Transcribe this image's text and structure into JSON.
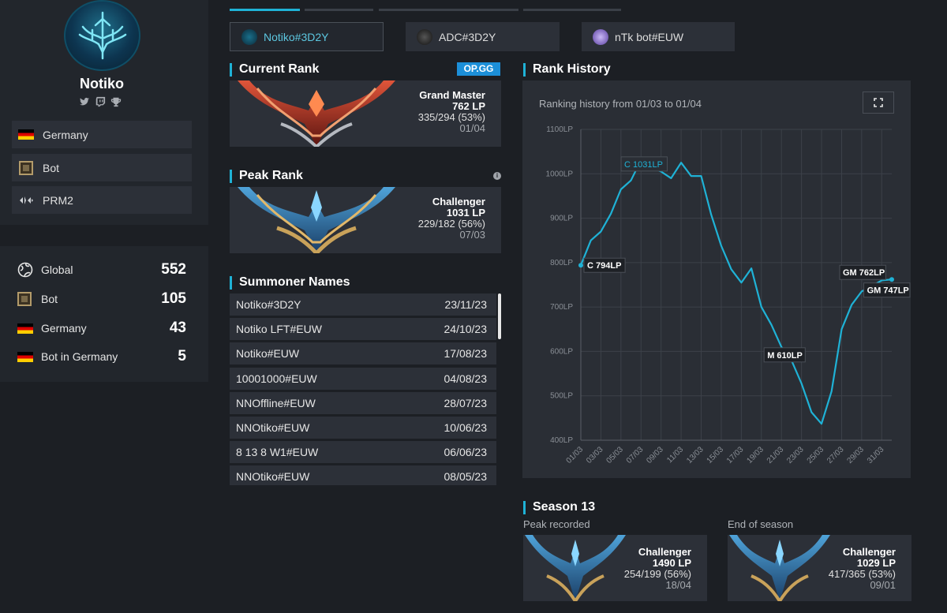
{
  "profile": {
    "name": "Notiko",
    "info": [
      {
        "icon": "germany-flag-icon",
        "label": "Germany"
      },
      {
        "icon": "bot-role-icon",
        "label": "Bot"
      },
      {
        "icon": "team-logo-icon",
        "label": "PRM2"
      }
    ]
  },
  "ladder": [
    {
      "icon": "globe-icon",
      "label": "Global",
      "value": "552"
    },
    {
      "icon": "bot-role-icon",
      "label": "Bot",
      "value": "105"
    },
    {
      "icon": "germany-flag-icon",
      "label": "Germany",
      "value": "43"
    },
    {
      "icon": "germany-flag-icon",
      "label": "Bot in Germany",
      "value": "5"
    }
  ],
  "accounts": [
    {
      "label": "Notiko#3D2Y",
      "active": true
    },
    {
      "label": "ADC#3D2Y",
      "active": false
    },
    {
      "label": "nTk bot#EUW",
      "active": false
    }
  ],
  "current_rank": {
    "title": "Current Rank",
    "badge": "OP.GG",
    "tier": "Grand Master",
    "lp": "762 LP",
    "wl": "335/294 (53%)",
    "date": "01/04"
  },
  "peak_rank": {
    "title": "Peak Rank",
    "tier": "Challenger",
    "lp": "1031 LP",
    "wl": "229/182 (56%)",
    "date": "07/03"
  },
  "summoner_names": {
    "title": "Summoner Names",
    "rows": [
      {
        "name": "Notiko#3D2Y",
        "date": "23/11/23"
      },
      {
        "name": "Notiko LFT#EUW",
        "date": "24/10/23"
      },
      {
        "name": "Notiko#EUW",
        "date": "17/08/23"
      },
      {
        "name": "10001000#EUW",
        "date": "04/08/23"
      },
      {
        "name": "NNOffline#EUW",
        "date": "28/07/23"
      },
      {
        "name": "NNOtiko#EUW",
        "date": "10/06/23"
      },
      {
        "name": "8 13 8 W1#EUW",
        "date": "06/06/23"
      },
      {
        "name": "NNOtiko#EUW",
        "date": "08/05/23"
      }
    ]
  },
  "rank_history": {
    "title": "Rank History",
    "subtitle": "Ranking history from 01/03 to 01/04"
  },
  "chart_data": {
    "type": "line",
    "title": "",
    "xlabel": "",
    "ylabel": "",
    "ylim": [
      400,
      1100
    ],
    "yticks": [
      "400LP",
      "500LP",
      "600LP",
      "700LP",
      "800LP",
      "900LP",
      "1000LP",
      "1100LP"
    ],
    "xticks": [
      "01/03",
      "03/03",
      "05/03",
      "07/03",
      "09/03",
      "11/03",
      "13/03",
      "15/03",
      "17/03",
      "19/03",
      "21/03",
      "23/03",
      "25/03",
      "27/03",
      "29/03",
      "31/03"
    ],
    "grid": true,
    "color": "#1fb2d6",
    "series": [
      {
        "x": [
          "01/03",
          "02/03",
          "03/03",
          "04/03",
          "05/03",
          "06/03",
          "07/03",
          "08/03",
          "09/03",
          "10/03",
          "11/03",
          "12/03",
          "13/03",
          "14/03",
          "15/03",
          "16/03",
          "17/03",
          "18/03",
          "19/03",
          "20/03",
          "21/03",
          "22/03",
          "23/03",
          "24/03",
          "25/03",
          "26/03",
          "27/03",
          "28/03",
          "29/03",
          "30/03",
          "31/03",
          "01/04"
        ],
        "values": [
          794,
          850,
          870,
          910,
          965,
          985,
          1031,
          1015,
          1005,
          990,
          1025,
          995,
          995,
          908,
          838,
          785,
          755,
          787,
          700,
          660,
          610,
          580,
          528,
          463,
          437,
          510,
          650,
          705,
          735,
          747,
          760,
          762
        ]
      }
    ],
    "annotations": [
      {
        "x": "01/03",
        "value": 794,
        "label": "C 794LP"
      },
      {
        "x": "07/03",
        "value": 1031,
        "label": "C 1031LP"
      },
      {
        "x": "21/03",
        "value": 610,
        "label": "M 610LP"
      },
      {
        "x": "30/03",
        "value": 747,
        "label": "GM 747LP"
      },
      {
        "x": "01/04",
        "value": 762,
        "label": "GM 762LP"
      }
    ]
  },
  "season": {
    "title": "Season 13",
    "peak": {
      "label": "Peak recorded",
      "tier": "Challenger",
      "lp": "1490 LP",
      "wl": "254/199 (56%)",
      "date": "18/04"
    },
    "end": {
      "label": "End of season",
      "tier": "Challenger",
      "lp": "1029 LP",
      "wl": "417/365 (53%)",
      "date": "09/01"
    }
  }
}
